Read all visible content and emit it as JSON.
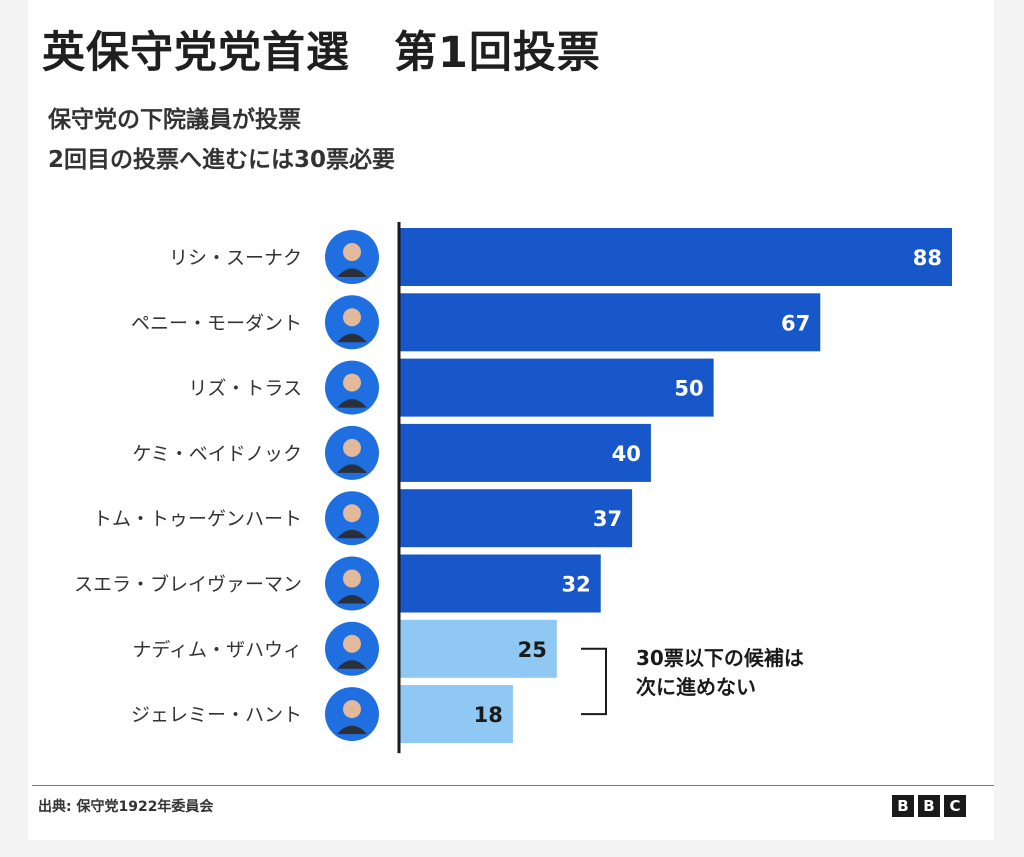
{
  "header": {
    "title": "英保守党党首選　第1回投票",
    "subtitle_line1": "保守党の下院議員が投票",
    "subtitle_line2": "2回目の投票へ進むには30票必要"
  },
  "chart_data": {
    "type": "bar",
    "orientation": "horizontal",
    "categories": [
      "リシ・スーナク",
      "ペニー・モーダント",
      "リズ・トラス",
      "ケミ・ベイドノック",
      "トム・トゥーゲンハート",
      "スエラ・ブレイヴァーマン",
      "ナディム・ザハウィ",
      "ジェレミー・ハント"
    ],
    "values": [
      88,
      67,
      50,
      40,
      37,
      32,
      25,
      18
    ],
    "xlim": [
      0,
      88
    ],
    "threshold": 30,
    "annotation_line1": "30票以下の候補は",
    "annotation_line2": "次に進めない",
    "colors": {
      "advance": "#1857c9",
      "eliminated": "#8fc8f2",
      "axis": "#1a1a1a"
    }
  },
  "footer": {
    "source": "出典: 保守党1922年委員会",
    "logo": [
      "B",
      "B",
      "C"
    ]
  }
}
